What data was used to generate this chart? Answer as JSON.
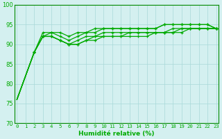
{
  "xlabel": "Humidité relative (%)",
  "background_color": "#d4f0f0",
  "grid_color": "#a8d8d8",
  "line_color": "#00aa00",
  "spine_color": "#008800",
  "xlim": [
    -0.3,
    23.3
  ],
  "ylim": [
    70,
    100
  ],
  "yticks": [
    70,
    75,
    80,
    85,
    90,
    95,
    100
  ],
  "xticks": [
    0,
    1,
    2,
    3,
    4,
    5,
    6,
    7,
    8,
    9,
    10,
    11,
    12,
    13,
    14,
    15,
    16,
    17,
    18,
    19,
    20,
    21,
    22,
    23
  ],
  "series": [
    [
      76,
      82,
      88,
      92,
      92,
      91,
      90,
      91,
      92,
      92,
      93,
      93,
      93,
      93,
      93,
      93,
      93,
      93,
      93,
      94,
      94,
      94,
      94,
      94
    ],
    [
      76,
      82,
      88,
      92,
      93,
      92,
      91,
      92,
      93,
      93,
      94,
      94,
      94,
      94,
      94,
      94,
      94,
      95,
      95,
      95,
      95,
      95,
      95,
      94
    ],
    [
      76,
      82,
      88,
      93,
      93,
      93,
      92,
      93,
      93,
      94,
      94,
      94,
      94,
      94,
      94,
      94,
      94,
      95,
      95,
      95,
      95,
      95,
      95,
      94
    ],
    [
      76,
      82,
      88,
      92,
      92,
      91,
      90,
      90,
      91,
      92,
      92,
      92,
      92,
      93,
      93,
      93,
      93,
      93,
      94,
      94,
      94,
      94,
      94,
      94
    ],
    [
      76,
      82,
      88,
      92,
      92,
      91,
      90,
      90,
      91,
      91,
      92,
      92,
      92,
      92,
      92,
      92,
      93,
      93,
      93,
      93,
      94,
      94,
      94,
      94
    ]
  ],
  "marker_series": [
    2,
    3,
    4,
    5,
    6,
    7,
    8,
    9,
    10,
    11,
    12,
    13,
    14,
    15,
    16,
    17,
    18,
    19,
    20,
    21,
    22
  ]
}
